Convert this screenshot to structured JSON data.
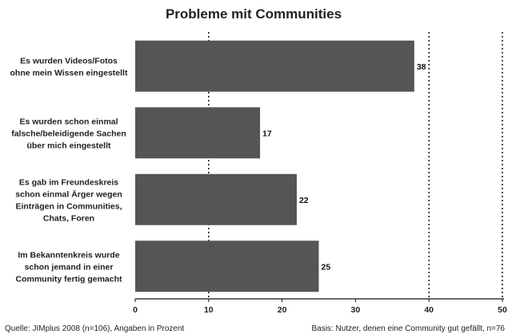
{
  "chart_data": {
    "type": "bar",
    "orientation": "horizontal",
    "title": "Probleme mit Communities",
    "categories": [
      [
        "Es wurden Videos/Fotos",
        "ohne mein Wissen eingestellt"
      ],
      [
        "Es wurden schon einmal",
        "falsche/beleidigende Sachen",
        "über mich eingestellt"
      ],
      [
        "Es gab im Freundeskreis",
        "schon einmal Ärger wegen",
        "Einträgen in Communities,",
        "Chats, Foren"
      ],
      [
        "Im Bekanntenkreis wurde",
        "schon jemand in einer",
        "Community fertig gemacht"
      ]
    ],
    "values": [
      38,
      17,
      22,
      25
    ],
    "xlim": [
      0,
      50
    ],
    "xticks": [
      0,
      10,
      20,
      30,
      40,
      50
    ],
    "gridlines": [
      10,
      40,
      50
    ],
    "bar_color": "#555555",
    "source_note": "Quelle: JIMplus 2008 (n=106), Angaben in Prozent",
    "base_note": "Basis: Nutzer, denen eine Community gut gefällt, n=76"
  }
}
